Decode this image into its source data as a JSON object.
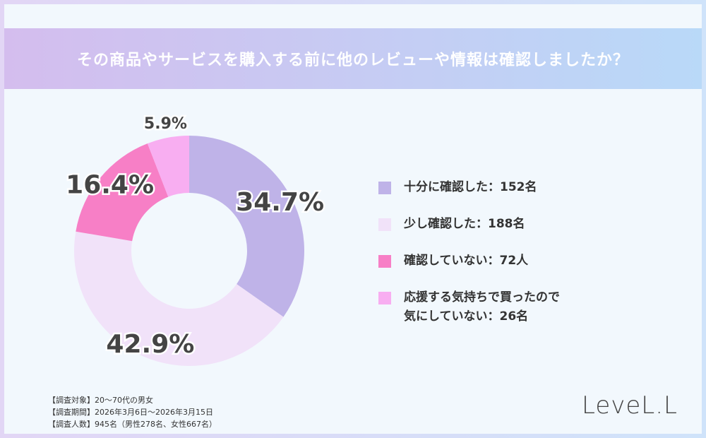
{
  "chart_data": {
    "type": "donut",
    "title": "その商品やサービスを購入する前に他のレビューや情報は確認しましたか？",
    "categories": [
      "十分に確認した：152名",
      "少し確認した：188名",
      "確認していない：72人",
      "応援する気持ちで買ったので\n気にしていない：26名"
    ],
    "values": [
      34.7,
      42.9,
      16.4,
      5.9
    ],
    "value_labels": [
      "34.7%",
      "42.9%",
      "16.4%",
      "5.9%"
    ],
    "colors": [
      "#bfb3e8",
      "#f1e2f9",
      "#f77fc6",
      "#f8aef1"
    ]
  },
  "notes": [
    "【調査対象】20～70代の男女",
    "【調査期間】2026年3月6日～2026年3月15日",
    "【調査人数】945名（男性278名、女性667名）"
  ],
  "logo": "LeveL.L"
}
